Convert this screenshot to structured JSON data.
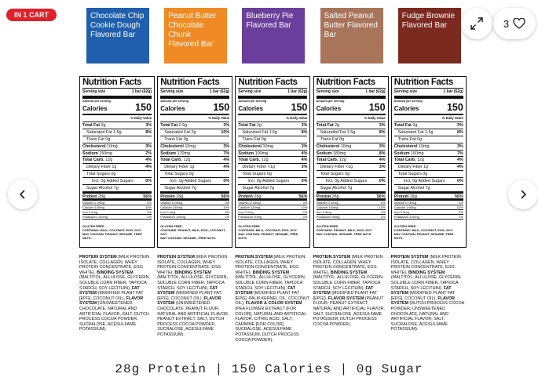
{
  "ui": {
    "cart_badge": "IN 1 CART",
    "wishlist_count": 3
  },
  "footer": "28g Protein | 150 Calories | 0g Sugar",
  "nutrition_labels": {
    "title": "Nutrition Facts",
    "serving_label": "Serving size",
    "amount_label": "Amount per serving",
    "calories_label": "Calories",
    "dv_label": "% Daily Value",
    "rows": [
      {
        "name": "Total Fat"
      },
      {
        "name": "Saturated Fat"
      },
      {
        "name": "Trans Fat"
      },
      {
        "name": "Cholesterol"
      },
      {
        "name": "Sodium"
      },
      {
        "name": "Total Carb."
      },
      {
        "name": "Dietary Fiber"
      },
      {
        "name": "Total Sugars"
      },
      {
        "name": "Incl.",
        "after": "Added Sugars"
      },
      {
        "name": "Sugar Alcohol"
      },
      {
        "name": "Protein"
      }
    ],
    "vitamins": [
      "Vitamin D",
      "Calcium",
      "Iron",
      "Potassium"
    ]
  },
  "products": [
    {
      "name": "Chocolate Chip Cookie Dough Flavored Bar",
      "color": "#1f5fad",
      "serving": "1 bar (62g)",
      "calories": 150,
      "amounts": [
        "2g",
        "1.5g",
        "0g",
        "10mg",
        "150mg",
        "12g",
        "1g",
        "0g",
        "0g",
        "7g",
        "28g"
      ],
      "dv": [
        "3%",
        "8%",
        null,
        "3%",
        "7%",
        "4%",
        "4%",
        null,
        "0%",
        null,
        "56%"
      ],
      "vitamin_amounts": [
        "0mcg",
        "130mg",
        "0.4mg",
        "100mg"
      ],
      "vitamin_dv": [
        "0%",
        "10%",
        "2%",
        "2%"
      ],
      "allergens": [
        "GLUTEN FREE.",
        "CONTAINS: MILK, COCONUT, EGG, SOY.",
        "MAY CONTAIN: PEANUT, SESAME, TREE NUTS."
      ],
      "ingredients": [
        {
          "label": "PROTEIN SYSTEM",
          "text": "(MILK PROTEIN ISOLATE, COLLAGEN, WHEY PROTEIN CONCENTRATE, EGG WHITE),"
        },
        {
          "label": "BINDING SYSTEM",
          "text": "(MALTITOL, ALLULOSE, GLYCERIN, SOLUBLE CORN FIBER, TAPIOCA STARCH, SOY LECITHIN),"
        },
        {
          "label": "FAT SYSTEM",
          "text": "(MODIFIED PLANT FAT [EPG], COCONUT OIL),"
        },
        {
          "label": "FLAVOR SYSTEM",
          "text": "(UNSWEETENED CHOCOLATE, NATURAL AND ARTIFICIAL FLAVOR, SALT, DUTCH PROCESS COCOA POWDER, SUCRALOSE, ACESULFAME POTASSIUM)."
        }
      ]
    },
    {
      "name": "Peanut Butter Chocolate Chunk Flavored Bar",
      "color": "#f08a24",
      "serving": "1 bar (62g)",
      "calories": 150,
      "amounts": [
        "2.5g",
        "2g",
        "0g",
        "10mg",
        "170mg",
        "12g",
        "1g",
        "0g",
        "0g",
        "7g",
        "28g"
      ],
      "dv": [
        "3%",
        "10%",
        null,
        "3%",
        "7%",
        "4%",
        "4%",
        null,
        "0%",
        null,
        "56%"
      ],
      "vitamin_amounts": [
        "0mcg",
        "140mg",
        "0.4mg",
        "110mg"
      ],
      "vitamin_dv": [
        "0%",
        "10%",
        "2%",
        "2%"
      ],
      "allergens": [
        "GLUTEN FREE.",
        "CONTAINS: PEANUT, MILK, EGG, COCONUT, SOY.",
        "MAY CONTAIN: SESAME, TREE NUTS."
      ],
      "ingredients": [
        {
          "label": "PROTEIN SYSTEM",
          "text": "(MILK PROTEIN ISOLATE, COLLAGEN, WHEY PROTEIN CONCENTRATE, EGG WHITE),"
        },
        {
          "label": "BINDING SYSTEM",
          "text": "(MALTITOL, ALLULOSE, GLYCERIN, SOLUBLE CORN FIBER, TAPIOCA STARCH, SOY LECITHIN),"
        },
        {
          "label": "FAT SYSTEM",
          "text": "(MODIFIED PLANT FAT [EPG], COCONUT OIL),"
        },
        {
          "label": "FLAVOR SYSTEM",
          "text": "(UNSWEETENED CHOCOLATE, PEANUT FLOUR, NATURAL AND ARTIFICIAL FLAVOR, PEANUT EXTRACT, SALT, DUTCH PROCESS COCOA POWDER, SUCRALOSE, ACESULFAME POTASSIUM)."
        }
      ]
    },
    {
      "name": "Blueberry Pie Flavored Bar",
      "color": "#6a3f9c",
      "serving": "1 bar (62g)",
      "calories": 150,
      "amounts": [
        "2g",
        "1.5g",
        "0g",
        "10mg",
        "100mg",
        "12g",
        "<1g",
        "0g",
        "0g",
        "7g",
        "28g"
      ],
      "dv": [
        "3%",
        "8%",
        null,
        "3%",
        "4%",
        "4%",
        "3%",
        null,
        "0%",
        null,
        "56%"
      ],
      "vitamin_amounts": [
        "0mcg",
        "120mg",
        "0.2mg",
        "20mg"
      ],
      "vitamin_dv": [
        "0%",
        "10%",
        "2%",
        "0%"
      ],
      "allergens": [
        "GLUTEN FREE.",
        "CONTAINS: MILK, COCONUT, EGG, SOY.",
        "MAY CONTAIN: PEANUT, SESAME, TREE NUTS."
      ],
      "ingredients": [
        {
          "label": "PROTEIN SYSTEM",
          "text": "(MILK PROTEIN ISOLATE, COLLAGEN, WHEY PROTEIN CONCENTRATE, EGG WHITE),"
        },
        {
          "label": "BINDING SYSTEM",
          "text": "(MALTITOL, ALLULOSE, GLYCERIN, SOLUBLE CORN FIBER, TAPIOCA STARCH, SOY LECITHIN),"
        },
        {
          "label": "FAT SYSTEM",
          "text": "(MODIFIED PLANT FAT [EPG], PALM KERNEL OIL, COCONUT OIL),"
        },
        {
          "label": "FLAVOR & COLOR SYSTEM",
          "text": "(PEA FLOWER EXTRACT [FOR COLOR], NATURAL AND ARTIFICIAL FLAVOR, CITRIC ACID, SALT, CARMINE [FOR COLOR], SUCRALOSE, ACESULFAME POTASSIUM, DUTCH PROCESS COCOA POWDER)."
        }
      ]
    },
    {
      "name": "Salted Peanut Butter Flavored Bar",
      "color": "#a8745a",
      "serving": "1 bar (62g)",
      "calories": 150,
      "amounts": [
        "2g",
        "1.5g",
        "0g",
        "10mg",
        "180mg",
        "12g",
        "<1g",
        "0g",
        "0g",
        "7g",
        "28g"
      ],
      "dv": [
        "3%",
        "8%",
        null,
        "3%",
        "8%",
        "4%",
        "3%",
        null,
        "0%",
        null,
        "56%"
      ],
      "vitamin_amounts": [
        "0mcg",
        "140mg",
        "0.3mg",
        "90mg"
      ],
      "vitamin_dv": [
        "0%",
        "10%",
        "2%",
        "2%"
      ],
      "allergens": [
        "GLUTEN FREE.",
        "CONTAINS: PEANUT, MILK, EGG, SOY.",
        "MAY CONTAIN: SESAME, TREE NUTS."
      ],
      "ingredients": [
        {
          "label": "PROTEIN SYSTEM",
          "text": "(MILK PROTEIN ISOLATE, COLLAGEN, WHEY PROTEIN CONCENTRATE, EGG WHITE),"
        },
        {
          "label": "BINDING SYSTEM",
          "text": "(MALTITOL, ALLULOSE, GLYCERIN, SOLUBLE CORN FIBER, TAPIOCA STARCH, SOY LECITHIN),"
        },
        {
          "label": "FAT SYSTEM",
          "text": "(MODIFIED PLANT FAT [EPG]),"
        },
        {
          "label": "FLAVOR SYSTEM",
          "text": "(PEANUT FLOUR, PEANUT EXTRACT, NATURAL AND ARTIFICIAL FLAVOR, SALT, SUCRALOSE, ACESULFAME POTASSIUM, DUTCH PROCESS COCOA POWDER)."
        }
      ]
    },
    {
      "name": "Fudge Brownie Flavored Bar",
      "color": "#7b2a1f",
      "serving": "1 bar (62g)",
      "calories": 150,
      "amounts": [
        "2g",
        "1.5g",
        "0g",
        "10mg",
        "160mg",
        "12g",
        "1g",
        "0g",
        "0g",
        "7g",
        "28g"
      ],
      "dv": [
        "3%",
        "8%",
        null,
        "3%",
        "7%",
        "4%",
        "4%",
        null,
        "0%",
        null,
        "56%"
      ],
      "vitamin_amounts": [
        "0mcg",
        "140mg",
        "0.5mg",
        "120mg"
      ],
      "vitamin_dv": [
        "0%",
        "10%",
        "2%",
        "2%"
      ],
      "allergens": [
        "GLUTEN FREE.",
        "CONTAINS: MILK, COCONUT, EGG, SOY.",
        "MAY CONTAIN: PEANUT, SESAME, TREE NUTS."
      ],
      "ingredients": [
        {
          "label": "PROTEIN SYSTEM",
          "text": "(MILK PROTEIN ISOLATE, COLLAGEN, WHEY PROTEIN CONCENTRATE, EGG WHITE),"
        },
        {
          "label": "BINDING SYSTEM",
          "text": "(MALTITOL, ALLULOSE, GLYCERIN, SOLUBLE CORN FIBER, TAPIOCA STARCH, SOY LECITHIN),"
        },
        {
          "label": "FAT SYSTEM",
          "text": "(MODIFIED PLANT FAT [EPG], COCONUT OIL),"
        },
        {
          "label": "FLAVOR SYSTEM",
          "text": "(DUTCH PROCESS COCOA POWDER, UNSWEETENED CHOCOLATE, NATURAL AND ARTIFICIAL FLAVOR, SALT, SUCRALOSE, ACESULFAME POTASSIUM)."
        }
      ]
    }
  ]
}
